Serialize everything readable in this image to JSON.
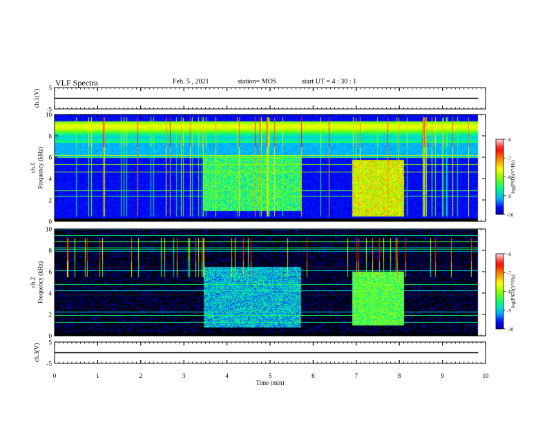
{
  "header": {
    "title": "VLF Spectra",
    "date": "Feb. 5 , 2021",
    "station": "station= MOS",
    "start": "start UT =  4 : 30 : 1"
  },
  "chart_data": [
    {
      "type": "line",
      "panel": "ch1-waveform",
      "ylabel": "ch.1(V)",
      "ylim": [
        -5,
        5
      ],
      "yticks": [
        "5",
        "-5"
      ],
      "xlim": [
        0,
        10
      ],
      "series": [
        {
          "x": [
            0,
            9.83
          ],
          "y": [
            0,
            0
          ]
        }
      ]
    },
    {
      "type": "heatmap",
      "panel": "ch1-spectrogram",
      "ylabel_line1": "ch.1",
      "ylabel_line2": "Frequency (kHz)",
      "ylim": [
        0,
        10
      ],
      "yticks": [
        "0",
        "2",
        "4",
        "6",
        "8",
        "10"
      ],
      "xlim": [
        0,
        10
      ],
      "data_end_min": 9.83,
      "bursts": [
        {
          "start_min": 3.45,
          "end_min": 5.72,
          "fmin_khz": 1.0,
          "fmax_khz": 6.2,
          "level": -8.4
        },
        {
          "start_min": 6.9,
          "end_min": 8.1,
          "fmin_khz": 0.5,
          "fmax_khz": 5.8,
          "level": -7.6
        }
      ],
      "colorbar": {
        "label": "log(PSD)(V²/Hz)",
        "range": [
          -10,
          -6
        ],
        "ticks": [
          "-6",
          "-7",
          "-8",
          "-9",
          "-10"
        ]
      }
    },
    {
      "type": "heatmap",
      "panel": "ch2-spectrogram",
      "ylabel_line1": "ch.2",
      "ylabel_line2": "Frequency (kHz)",
      "ylim": [
        0,
        10
      ],
      "yticks": [
        "0",
        "2",
        "4",
        "6",
        "8",
        "10"
      ],
      "xlim": [
        0,
        10
      ],
      "data_end_min": 9.83,
      "bursts": [
        {
          "start_min": 3.45,
          "end_min": 5.72,
          "fmin_khz": 0.8,
          "fmax_khz": 6.5,
          "level": -8.9
        },
        {
          "start_min": 6.9,
          "end_min": 8.1,
          "fmin_khz": 1.0,
          "fmax_khz": 6.0,
          "level": -8.2
        }
      ],
      "colorbar": {
        "label": "log(PSD)(V²/Hz)",
        "range": [
          -10,
          -6
        ],
        "ticks": [
          "-6",
          "-7",
          "-8",
          "-9",
          "-10"
        ]
      }
    },
    {
      "type": "line",
      "panel": "ch3-waveform",
      "ylabel": "ch.3(V)",
      "ylim": [
        -5,
        5
      ],
      "yticks": [
        "5",
        "-5"
      ],
      "xlim": [
        0,
        10
      ],
      "xlabel": "Time (min)",
      "xticks": [
        "0",
        "1",
        "2",
        "3",
        "4",
        "5",
        "6",
        "7",
        "8",
        "9",
        "10"
      ],
      "series": [
        {
          "x": [
            0,
            9.83
          ],
          "y": [
            0,
            0
          ]
        }
      ]
    }
  ],
  "colors": {
    "background": "#ffffff",
    "axis": "#000000",
    "colormap": [
      "#000080",
      "#0000ff",
      "#00bfff",
      "#00ff80",
      "#80ff00",
      "#ffff00",
      "#ff8000",
      "#ff0000",
      "#ffe0e0"
    ]
  }
}
